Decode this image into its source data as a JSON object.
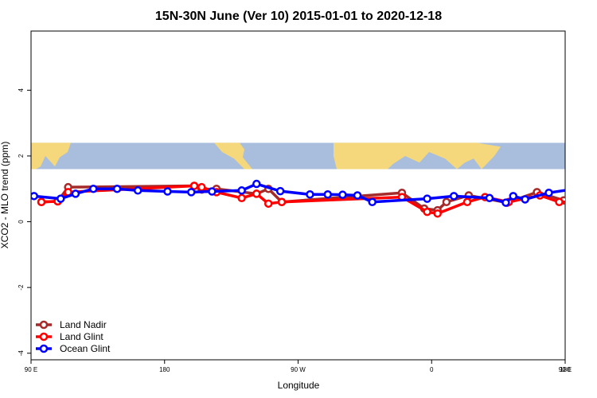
{
  "chart_data": {
    "type": "line",
    "title": "15N-30N June (Ver 10)   2015-01-01 to 2020-12-18",
    "xlabel": "Longitude",
    "ylabel": "XCO2 - MLO trend (ppm)",
    "xlim": [
      90,
      450
    ],
    "ylim": [
      -4.2,
      5.8
    ],
    "x_ticks": [
      {
        "value": 90,
        "label": "90 E"
      },
      {
        "value": 180,
        "label": "180"
      },
      {
        "value": 270,
        "label": "90 W"
      },
      {
        "value": 360,
        "label": "0"
      },
      {
        "value": 450,
        "label": "90 E"
      },
      {
        "value": 540,
        "label": "180"
      }
    ],
    "y_ticks": [
      {
        "value": -4,
        "label": "-4"
      },
      {
        "value": -2,
        "label": "-2"
      },
      {
        "value": 0,
        "label": "0"
      },
      {
        "value": 2,
        "label": "2"
      },
      {
        "value": 4,
        "label": "4"
      }
    ],
    "map_strip": {
      "y_from": 1.6,
      "y_to": 2.4,
      "ocean_color": "#a8bedc",
      "land_color": "#f5d77c"
    },
    "legend_position": "bottom-left",
    "series": [
      {
        "name": "Land Nadir",
        "color": "#a52a2a",
        "x": [
          97,
          108,
          115,
          200,
          205,
          215,
          242,
          250,
          259,
          340,
          355,
          364,
          370,
          385,
          411,
          431,
          449,
          473,
          480
        ],
        "y": [
          0.6,
          0.62,
          1.05,
          1.09,
          0.98,
          1.0,
          0.85,
          1.0,
          0.6,
          0.88,
          0.4,
          0.35,
          0.6,
          0.8,
          0.58,
          0.9,
          0.65,
          0.7,
          1.05
        ]
      },
      {
        "name": "Land Glint",
        "color": "#ff0000",
        "x": [
          97,
          108,
          115,
          200,
          205,
          215,
          232,
          242,
          250,
          259,
          340,
          357,
          364,
          384,
          396,
          412,
          433,
          446,
          465
        ],
        "y": [
          0.6,
          0.62,
          0.9,
          1.09,
          1.05,
          0.9,
          0.72,
          0.85,
          0.55,
          0.6,
          0.75,
          0.3,
          0.25,
          0.6,
          0.75,
          0.6,
          0.8,
          0.6,
          0.6
        ]
      },
      {
        "name": "Ocean Glint",
        "color": "#0000ff",
        "x": [
          92,
          110,
          120,
          132,
          148,
          162,
          182,
          198,
          212,
          232,
          242,
          258,
          278,
          290,
          300,
          310,
          320,
          357,
          375,
          399,
          410,
          415,
          423,
          439,
          457,
          473,
          487,
          498
        ],
        "y": [
          0.78,
          0.7,
          0.85,
          1.0,
          1.0,
          0.95,
          0.92,
          0.9,
          0.92,
          0.95,
          1.15,
          0.93,
          0.83,
          0.83,
          0.82,
          0.8,
          0.6,
          0.7,
          0.78,
          0.72,
          0.58,
          0.78,
          0.68,
          0.88,
          1.0,
          0.98,
          0.95,
          0.95
        ]
      }
    ]
  }
}
